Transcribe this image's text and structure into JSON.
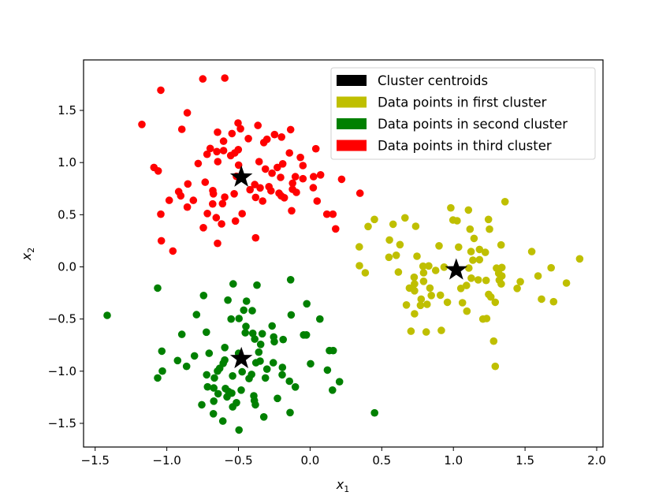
{
  "chart_data": {
    "type": "scatter",
    "title": "",
    "xlabel": "x1",
    "ylabel": "x2",
    "xlim": [
      -1.581,
      2.044
    ],
    "ylim": [
      -1.727,
      1.984
    ],
    "xticks": [
      -1.5,
      -1.0,
      -0.5,
      0.0,
      0.5,
      1.0,
      1.5,
      2.0
    ],
    "xtick_labels": [
      "−1.5",
      "−1.0",
      "−0.5",
      "0.0",
      "0.5",
      "1.0",
      "1.5",
      "2.0"
    ],
    "yticks": [
      -1.5,
      -1.0,
      -0.5,
      0.0,
      0.5,
      1.0,
      1.5
    ],
    "ytick_labels": [
      "−1.5",
      "−1.0",
      "−0.5",
      "0.0",
      "0.5",
      "1.0",
      "1.5"
    ],
    "grid": false,
    "legend_position": "upper right",
    "legend": [
      {
        "label": "Cluster centroids",
        "color": "#000000"
      },
      {
        "label": "Data points in first cluster",
        "color": "#bfbf00"
      },
      {
        "label": "Data points in second cluster",
        "color": "#008000"
      },
      {
        "label": "Data points in third cluster",
        "color": "#ff0000"
      }
    ],
    "series": [
      {
        "name": "Data points in first cluster",
        "color": "#bfbf00",
        "marker": "circle",
        "points": [
          [
            1.36,
            0.625
          ],
          [
            0.982,
            0.565
          ],
          [
            1.105,
            0.545
          ],
          [
            0.997,
            0.449
          ],
          [
            1.026,
            0.442
          ],
          [
            1.245,
            0.455
          ],
          [
            1.252,
            0.361
          ],
          [
            1.116,
            0.361
          ],
          [
            1.144,
            0.273
          ],
          [
            0.449,
            0.455
          ],
          [
            0.405,
            0.387
          ],
          [
            0.579,
            0.409
          ],
          [
            0.662,
            0.47
          ],
          [
            0.737,
            0.389
          ],
          [
            0.554,
            0.258
          ],
          [
            0.627,
            0.213
          ],
          [
            0.343,
            0.192
          ],
          [
            0.55,
            0.092
          ],
          [
            0.601,
            0.111
          ],
          [
            0.746,
            0.102
          ],
          [
            0.9,
            0.202
          ],
          [
            1.036,
            0.19
          ],
          [
            1.333,
            0.21
          ],
          [
            1.123,
            0.147
          ],
          [
            1.182,
            0.167
          ],
          [
            1.223,
            0.139
          ],
          [
            1.136,
            0.064
          ],
          [
            1.182,
            0.069
          ],
          [
            1.547,
            0.147
          ],
          [
            1.881,
            0.077
          ],
          [
            0.344,
            0.011
          ],
          [
            0.385,
            -0.057
          ],
          [
            0.616,
            -0.05
          ],
          [
            0.788,
            0.006
          ],
          [
            0.828,
            0.009
          ],
          [
            0.792,
            -0.057
          ],
          [
            0.876,
            -0.034
          ],
          [
            0.935,
            -0.002
          ],
          [
            0.726,
            -0.1
          ],
          [
            0.792,
            -0.138
          ],
          [
            1.108,
            -0.011
          ],
          [
            1.125,
            -0.108
          ],
          [
            1.173,
            -0.125
          ],
          [
            1.228,
            -0.13
          ],
          [
            1.301,
            -0.012
          ],
          [
            1.338,
            -0.006
          ],
          [
            1.316,
            -0.062
          ],
          [
            1.338,
            -0.087
          ],
          [
            1.32,
            -0.127
          ],
          [
            1.334,
            -0.163
          ],
          [
            1.467,
            -0.142
          ],
          [
            1.445,
            -0.206
          ],
          [
            1.591,
            -0.087
          ],
          [
            1.682,
            -0.009
          ],
          [
            1.789,
            -0.155
          ],
          [
            0.693,
            -0.203
          ],
          [
            0.729,
            -0.229
          ],
          [
            0.729,
            -0.163
          ],
          [
            0.836,
            -0.203
          ],
          [
            0.846,
            -0.274
          ],
          [
            0.909,
            -0.271
          ],
          [
            1.052,
            -0.206
          ],
          [
            1.091,
            -0.178
          ],
          [
            0.958,
            -0.339
          ],
          [
            1.063,
            -0.344
          ],
          [
            1.094,
            -0.425
          ],
          [
            0.775,
            -0.309
          ],
          [
            0.816,
            -0.359
          ],
          [
            0.77,
            -0.369
          ],
          [
            0.672,
            -0.365
          ],
          [
            0.729,
            -0.45
          ],
          [
            1.246,
            -0.264
          ],
          [
            1.261,
            -0.289
          ],
          [
            1.292,
            -0.339
          ],
          [
            1.615,
            -0.309
          ],
          [
            1.699,
            -0.334
          ],
          [
            1.206,
            -0.5
          ],
          [
            1.232,
            -0.495
          ],
          [
            0.704,
            -0.617
          ],
          [
            0.81,
            -0.624
          ],
          [
            0.916,
            -0.609
          ],
          [
            1.281,
            -0.712
          ],
          [
            1.292,
            -0.954
          ]
        ]
      },
      {
        "name": "Data points in second cluster",
        "color": "#008000",
        "marker": "circle",
        "points": [
          [
            -1.416,
            -0.465
          ],
          [
            -1.064,
            -0.203
          ],
          [
            -0.743,
            -0.274
          ],
          [
            -0.793,
            -0.458
          ],
          [
            -0.537,
            -0.163
          ],
          [
            -0.371,
            -0.175
          ],
          [
            -0.136,
            -0.123
          ],
          [
            -0.574,
            -0.319
          ],
          [
            -0.444,
            -0.329
          ],
          [
            -0.023,
            -0.354
          ],
          [
            -0.463,
            -0.415
          ],
          [
            -0.404,
            -0.42
          ],
          [
            -0.132,
            -0.46
          ],
          [
            0.068,
            -0.5
          ],
          [
            -0.551,
            -0.5
          ],
          [
            -0.496,
            -0.495
          ],
          [
            -0.265,
            -0.566
          ],
          [
            -0.448,
            -0.571
          ],
          [
            -0.895,
            -0.647
          ],
          [
            -0.724,
            -0.626
          ],
          [
            -0.452,
            -0.632
          ],
          [
            -0.4,
            -0.637
          ],
          [
            -0.334,
            -0.641
          ],
          [
            -0.254,
            -0.672
          ],
          [
            -0.25,
            -0.717
          ],
          [
            -0.188,
            -0.697
          ],
          [
            -0.045,
            -0.652
          ],
          [
            -0.026,
            -0.652
          ],
          [
            -0.386,
            -0.692
          ],
          [
            -0.345,
            -0.743
          ],
          [
            -1.035,
            -0.808
          ],
          [
            -0.925,
            -0.898
          ],
          [
            -0.807,
            -0.853
          ],
          [
            -0.862,
            -0.954
          ],
          [
            -0.705,
            -0.828
          ],
          [
            -0.595,
            -0.773
          ],
          [
            -0.596,
            -0.893
          ],
          [
            -0.606,
            -0.924
          ],
          [
            -0.499,
            -0.828
          ],
          [
            -0.358,
            -0.818
          ],
          [
            -0.349,
            -0.903
          ],
          [
            -0.378,
            -0.919
          ],
          [
            -0.257,
            -0.919
          ],
          [
            -0.193,
            -0.964
          ],
          [
            -0.195,
            -1.035
          ],
          [
            -0.301,
            -0.98
          ],
          [
            -0.312,
            -1.065
          ],
          [
            0.003,
            -0.929
          ],
          [
            0.135,
            -0.803
          ],
          [
            0.161,
            -0.803
          ],
          [
            0.121,
            -0.989
          ],
          [
            0.205,
            -1.101
          ],
          [
            0.156,
            -1.181
          ],
          [
            -0.144,
            -1.096
          ],
          [
            -0.103,
            -1.151
          ],
          [
            -1.031,
            -0.999
          ],
          [
            -1.064,
            -1.065
          ],
          [
            -0.722,
            -1.035
          ],
          [
            -0.668,
            -1.065
          ],
          [
            -0.646,
            -0.999
          ],
          [
            -0.631,
            -0.973
          ],
          [
            -0.541,
            -1.045
          ],
          [
            -0.474,
            -1.006
          ],
          [
            -0.408,
            -1.031
          ],
          [
            -0.426,
            -1.071
          ],
          [
            -0.716,
            -1.15
          ],
          [
            -0.672,
            -1.161
          ],
          [
            -0.642,
            -1.216
          ],
          [
            -0.591,
            -1.166
          ],
          [
            -0.569,
            -1.196
          ],
          [
            -0.547,
            -1.211
          ],
          [
            -0.58,
            -1.246
          ],
          [
            -0.481,
            -1.181
          ],
          [
            -0.393,
            -1.236
          ],
          [
            -0.389,
            -1.281
          ],
          [
            -0.382,
            -1.322
          ],
          [
            -0.228,
            -1.261
          ],
          [
            -0.756,
            -1.322
          ],
          [
            -0.672,
            -1.287
          ],
          [
            -0.514,
            -1.302
          ],
          [
            -0.54,
            -1.342
          ],
          [
            -0.675,
            -1.408
          ],
          [
            -0.609,
            -1.478
          ],
          [
            -0.496,
            -1.564
          ],
          [
            -0.323,
            -1.438
          ],
          [
            -0.14,
            -1.397
          ],
          [
            0.45,
            -1.4
          ]
        ]
      },
      {
        "name": "Data points in third cluster",
        "color": "#ff0000",
        "marker": "circle",
        "points": [
          [
            -0.749,
            1.802
          ],
          [
            -0.595,
            1.81
          ],
          [
            -1.042,
            1.694
          ],
          [
            -0.857,
            1.477
          ],
          [
            -1.174,
            1.366
          ],
          [
            -0.895,
            1.319
          ],
          [
            -0.503,
            1.379
          ],
          [
            -0.486,
            1.324
          ],
          [
            -0.364,
            1.356
          ],
          [
            -0.136,
            1.316
          ],
          [
            -0.646,
            1.291
          ],
          [
            -0.545,
            1.278
          ],
          [
            -0.431,
            1.23
          ],
          [
            -0.248,
            1.268
          ],
          [
            -0.199,
            1.245
          ],
          [
            -0.323,
            1.192
          ],
          [
            -0.301,
            1.223
          ],
          [
            -0.604,
            1.205
          ],
          [
            -0.697,
            1.135
          ],
          [
            -0.719,
            1.079
          ],
          [
            -0.651,
            1.105
          ],
          [
            -0.604,
            1.115
          ],
          [
            -0.554,
            1.067
          ],
          [
            -0.526,
            1.092
          ],
          [
            -0.501,
            1.124
          ],
          [
            -0.144,
            1.092
          ],
          [
            0.04,
            1.132
          ],
          [
            -0.068,
            1.049
          ],
          [
            -0.781,
            0.991
          ],
          [
            -0.644,
            1.009
          ],
          [
            -0.499,
            0.976
          ],
          [
            -0.356,
            1.009
          ],
          [
            -1.09,
            0.953
          ],
          [
            -1.06,
            0.92
          ],
          [
            -0.312,
            0.938
          ],
          [
            -0.229,
            0.953
          ],
          [
            -0.191,
            0.988
          ],
          [
            -0.05,
            0.971
          ],
          [
            -0.266,
            0.898
          ],
          [
            -0.206,
            0.858
          ],
          [
            -0.103,
            0.865
          ],
          [
            -0.122,
            0.802
          ],
          [
            -0.05,
            0.845
          ],
          [
            0.024,
            0.865
          ],
          [
            0.073,
            0.882
          ],
          [
            0.22,
            0.84
          ],
          [
            -0.514,
            0.868
          ],
          [
            -0.732,
            0.812
          ],
          [
            -0.853,
            0.795
          ],
          [
            -0.917,
            0.721
          ],
          [
            -0.903,
            0.681
          ],
          [
            -0.815,
            0.638
          ],
          [
            -0.983,
            0.638
          ],
          [
            -0.857,
            0.573
          ],
          [
            -0.679,
            0.731
          ],
          [
            -0.675,
            0.701
          ],
          [
            -0.53,
            0.701
          ],
          [
            -0.596,
            0.669
          ],
          [
            -0.611,
            0.606
          ],
          [
            -0.68,
            0.603
          ],
          [
            -0.419,
            0.739
          ],
          [
            -0.386,
            0.789
          ],
          [
            -0.349,
            0.757
          ],
          [
            -0.38,
            0.666
          ],
          [
            -0.331,
            0.631
          ],
          [
            -0.287,
            0.769
          ],
          [
            -0.273,
            0.729
          ],
          [
            -0.217,
            0.706
          ],
          [
            -0.18,
            0.663
          ],
          [
            -0.202,
            0.681
          ],
          [
            -0.123,
            0.744
          ],
          [
            -0.096,
            0.714
          ],
          [
            0.022,
            0.759
          ],
          [
            0.049,
            0.631
          ],
          [
            -0.129,
            0.538
          ],
          [
            0.117,
            0.505
          ],
          [
            0.159,
            0.505
          ],
          [
            0.178,
            0.364
          ],
          [
            0.348,
            0.706
          ],
          [
            -1.042,
            0.505
          ],
          [
            -0.717,
            0.512
          ],
          [
            -0.655,
            0.472
          ],
          [
            -0.618,
            0.412
          ],
          [
            -0.474,
            0.51
          ],
          [
            -0.521,
            0.44
          ],
          [
            -0.745,
            0.376
          ],
          [
            -1.038,
            0.25
          ],
          [
            -0.646,
            0.225
          ],
          [
            -0.38,
            0.278
          ],
          [
            -0.958,
            0.152
          ]
        ]
      },
      {
        "name": "Cluster centroids",
        "color": "#000000",
        "marker": "star",
        "points": [
          [
            1.02,
            -0.03
          ],
          [
            -0.48,
            -0.88
          ],
          [
            -0.48,
            0.86
          ]
        ]
      }
    ]
  }
}
